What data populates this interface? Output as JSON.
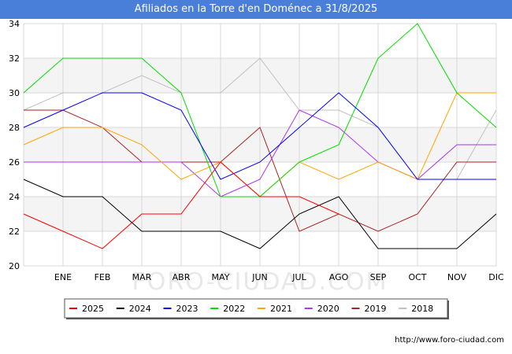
{
  "title": "Afiliados en la Torre d'en Doménec a 31/8/2025",
  "watermark": "FORO-CIUDAD.COM",
  "footer": "http://www.foro-ciudad.com",
  "chart_data": {
    "type": "line",
    "categories": [
      "",
      "ENE",
      "FEB",
      "MAR",
      "ABR",
      "MAY",
      "JUN",
      "JUL",
      "AGO",
      "SEP",
      "OCT",
      "NOV",
      "DIC"
    ],
    "ylim": [
      20,
      34
    ],
    "yticks": [
      20,
      22,
      24,
      26,
      28,
      30,
      32,
      34
    ],
    "grid": true,
    "legend_position": "bottom",
    "series": [
      {
        "name": "2025",
        "color": "#ff0000",
        "values": [
          23,
          22,
          21,
          23,
          23,
          26,
          24,
          24,
          23,
          null,
          null,
          null,
          null
        ]
      },
      {
        "name": "2024",
        "color": "#000000",
        "values": [
          25,
          24,
          24,
          22,
          22,
          22,
          21,
          23,
          24,
          21,
          21,
          21,
          23
        ]
      },
      {
        "name": "2023",
        "color": "#0000ff",
        "values": [
          28,
          29,
          30,
          30,
          29,
          25,
          26,
          28,
          30,
          28,
          25,
          25,
          25
        ]
      },
      {
        "name": "2022",
        "color": "#00dd00",
        "values": [
          30,
          32,
          32,
          32,
          30,
          24,
          24,
          26,
          27,
          32,
          34,
          30,
          28
        ]
      },
      {
        "name": "2021",
        "color": "#ffa500",
        "values": [
          27,
          28,
          28,
          27,
          25,
          26,
          24,
          26,
          25,
          26,
          25,
          30,
          30
        ]
      },
      {
        "name": "2020",
        "color": "#aa33ee",
        "values": [
          26,
          26,
          26,
          26,
          26,
          24,
          25,
          29,
          28,
          26,
          25,
          27,
          27
        ]
      },
      {
        "name": "2019",
        "color": "#aa2222",
        "values": [
          29,
          29,
          28,
          26,
          26,
          26,
          28,
          22,
          23,
          22,
          23,
          26,
          26
        ]
      },
      {
        "name": "2018",
        "color": "#c0c0c0",
        "values": [
          29,
          30,
          30,
          31,
          30,
          30,
          32,
          29,
          29,
          28,
          25,
          25,
          29
        ]
      }
    ]
  }
}
